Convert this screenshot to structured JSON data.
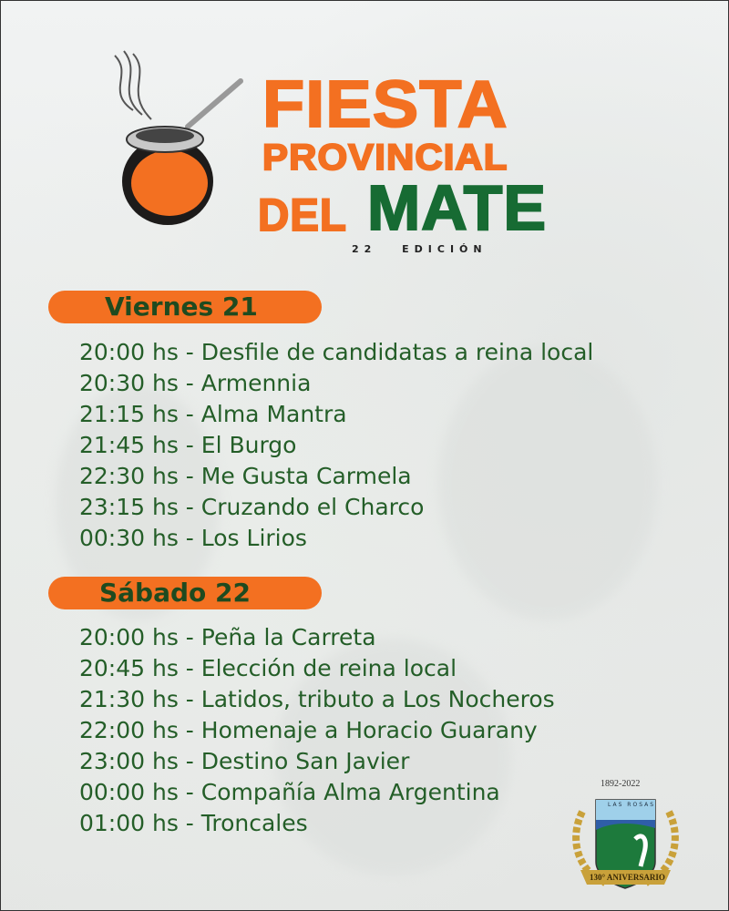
{
  "header": {
    "title_line1": "FIESTA",
    "title_line2": "PROVINCIAL",
    "title_del": "DEL",
    "title_mate": "MATE",
    "edition": "22 EDICIÓN",
    "icon": "mate-gourd-icon"
  },
  "days": [
    {
      "label": "Viernes 21",
      "items": [
        "20:00 hs - Desfile de candidatas a reina local",
        "20:30 hs - Armennia",
        "21:15 hs - Alma Mantra",
        "21:45 hs - El Burgo",
        "22:30 hs - Me Gusta Carmela",
        "23:15 hs - Cruzando el Charco",
        "00:30 hs - Los Lirios"
      ]
    },
    {
      "label": "Sábado 22",
      "items": [
        "20:00 hs - Peña la Carreta",
        "20:45 hs - Elección de reina local",
        "21:30 hs - Latidos, tributo a Los Nocheros",
        "22:00 hs - Homenaje a Horacio Guarany",
        "23:00 hs - Destino San Javier",
        "00:00 hs - Compañía Alma Argentina",
        "01:00 hs - Troncales"
      ]
    }
  ],
  "logo": {
    "years": "1892-2022",
    "name": "LAS ROSAS",
    "ribbon": "130° ANIVERSARIO"
  },
  "colors": {
    "orange": "#f37021",
    "green": "#176b33",
    "text": "#245e28"
  }
}
